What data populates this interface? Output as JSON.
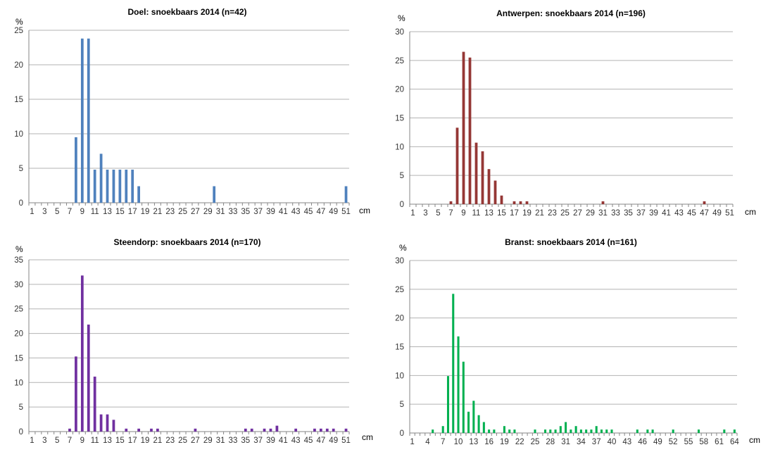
{
  "chart_data": [
    {
      "type": "bar",
      "title": "Doel: snoekbaars 2014 (n=42)",
      "ylabel": "%",
      "xlabel": "cm",
      "ylim": [
        0,
        25
      ],
      "yticks": [
        0,
        5,
        10,
        15,
        20,
        25
      ],
      "x_range": [
        1,
        51
      ],
      "x_tick_labels": [
        "1",
        "3",
        "5",
        "7",
        "9",
        "11",
        "13",
        "15",
        "17",
        "19",
        "21",
        "23",
        "25",
        "27",
        "29",
        "31",
        "33",
        "35",
        "37",
        "39",
        "41",
        "43",
        "45",
        "47",
        "49",
        "51"
      ],
      "color": "#4f81bd",
      "grid": true,
      "x": [
        8,
        9,
        10,
        11,
        12,
        13,
        14,
        15,
        16,
        17,
        18,
        30,
        51
      ],
      "values": [
        9.5,
        23.8,
        23.8,
        4.8,
        7.1,
        4.8,
        4.8,
        4.8,
        4.8,
        4.8,
        2.4,
        2.4,
        2.4
      ]
    },
    {
      "type": "bar",
      "title": "Antwerpen: snoekbaars 2014 (n=196)",
      "ylabel": "%",
      "xlabel": "cm",
      "ylim": [
        0,
        30
      ],
      "yticks": [
        0,
        5,
        10,
        15,
        20,
        25,
        30
      ],
      "x_range": [
        1,
        51
      ],
      "x_tick_labels": [
        "1",
        "3",
        "5",
        "7",
        "9",
        "11",
        "13",
        "15",
        "17",
        "19",
        "21",
        "23",
        "25",
        "27",
        "29",
        "31",
        "33",
        "35",
        "37",
        "39",
        "41",
        "43",
        "45",
        "47",
        "49",
        "51"
      ],
      "color": "#953735",
      "grid": true,
      "x": [
        7,
        8,
        9,
        10,
        11,
        12,
        13,
        14,
        15,
        17,
        18,
        19,
        31,
        47
      ],
      "values": [
        0.5,
        13.3,
        26.5,
        25.5,
        10.7,
        9.2,
        6.1,
        4.1,
        1.5,
        0.5,
        0.5,
        0.5,
        0.5,
        0.5
      ]
    },
    {
      "type": "bar",
      "title": "Steendorp: snoekbaars 2014 (n=170)",
      "ylabel": "%",
      "xlabel": "cm",
      "ylim": [
        0,
        35
      ],
      "yticks": [
        0,
        5,
        10,
        15,
        20,
        25,
        30,
        35
      ],
      "x_range": [
        1,
        51
      ],
      "x_tick_labels": [
        "1",
        "3",
        "5",
        "7",
        "9",
        "11",
        "13",
        "15",
        "17",
        "19",
        "21",
        "23",
        "25",
        "27",
        "29",
        "31",
        "33",
        "35",
        "37",
        "39",
        "41",
        "43",
        "45",
        "47",
        "49",
        "51"
      ],
      "color": "#7030a0",
      "grid": true,
      "x": [
        7,
        8,
        9,
        10,
        11,
        12,
        13,
        14,
        16,
        18,
        20,
        21,
        27,
        35,
        36,
        38,
        39,
        40,
        43,
        46,
        47,
        48,
        49,
        51
      ],
      "values": [
        0.6,
        15.3,
        31.8,
        21.8,
        11.2,
        3.5,
        3.5,
        2.4,
        0.6,
        0.6,
        0.6,
        0.6,
        0.6,
        0.6,
        0.6,
        0.6,
        0.6,
        1.2,
        0.6,
        0.6,
        0.6,
        0.6,
        0.6,
        0.6
      ]
    },
    {
      "type": "bar",
      "title": "Branst: snoekbaars 2014 (n=161)",
      "ylabel": "%",
      "xlabel": "cm",
      "ylim": [
        0,
        30
      ],
      "yticks": [
        0,
        5,
        10,
        15,
        20,
        25,
        30
      ],
      "x_range": [
        1,
        64
      ],
      "x_tick_labels": [
        "1",
        "4",
        "7",
        "10",
        "13",
        "16",
        "19",
        "22",
        "25",
        "28",
        "31",
        "34",
        "37",
        "40",
        "43",
        "46",
        "49",
        "52",
        "55",
        "58",
        "61",
        "64"
      ],
      "color": "#00b050",
      "grid": true,
      "x": [
        5,
        7,
        8,
        9,
        10,
        11,
        12,
        13,
        14,
        15,
        16,
        17,
        19,
        20,
        21,
        25,
        27,
        28,
        29,
        30,
        31,
        32,
        33,
        34,
        35,
        36,
        37,
        38,
        39,
        40,
        45,
        47,
        48,
        52,
        57,
        62,
        64
      ],
      "values": [
        0.6,
        1.2,
        9.9,
        24.2,
        16.8,
        12.4,
        3.7,
        5.6,
        3.1,
        1.9,
        0.6,
        0.6,
        1.2,
        0.6,
        0.6,
        0.6,
        0.6,
        0.6,
        0.6,
        1.2,
        1.9,
        0.6,
        1.2,
        0.6,
        0.6,
        0.6,
        1.2,
        0.6,
        0.6,
        0.6,
        0.6,
        0.6,
        0.6,
        0.6,
        0.6,
        0.6,
        0.6
      ]
    }
  ]
}
